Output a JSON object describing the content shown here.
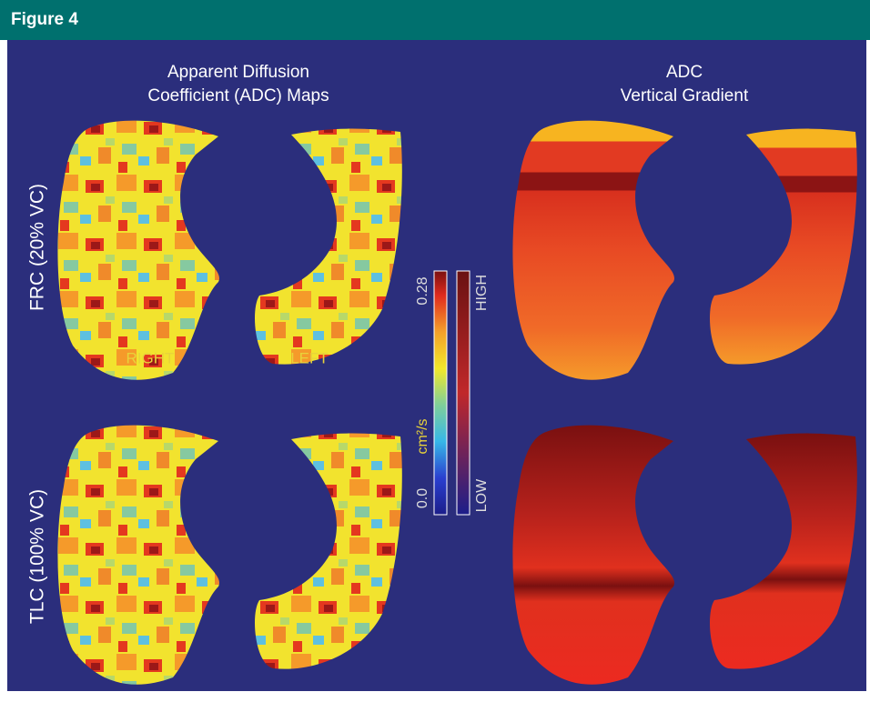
{
  "header": {
    "title": "Figure 4"
  },
  "panels": [
    {
      "title_lines": [
        "Apparent Diffusion",
        "Coefficient (ADC) Maps"
      ]
    },
    {
      "title_lines": [
        "ADC",
        "Vertical Gradient"
      ]
    }
  ],
  "rows": [
    {
      "label": "FRC (20% VC)"
    },
    {
      "label": "TLC (100% VC)"
    }
  ],
  "sides": {
    "right": "RIGHT",
    "left": "LEFT"
  },
  "colorbar": {
    "max_label": "0.28",
    "min_label": "0.0",
    "unit": "cm²/s",
    "high": "HIGH",
    "low": "LOW"
  }
}
